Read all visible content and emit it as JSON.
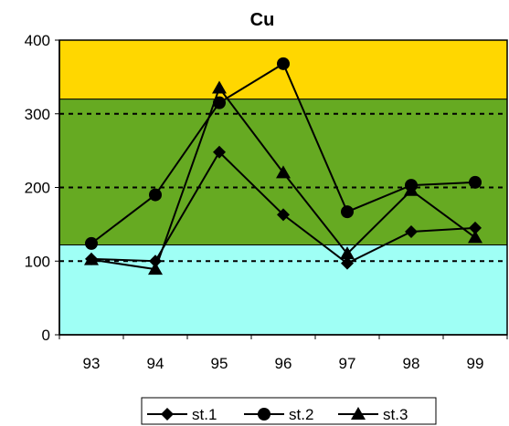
{
  "chart_data": {
    "type": "line",
    "title": "Cu",
    "xlabel": "",
    "ylabel": "",
    "categories": [
      "93",
      "94",
      "95",
      "96",
      "97",
      "98",
      "99"
    ],
    "ylim": [
      0,
      400
    ],
    "yticks": [
      "0",
      "100",
      "200",
      "300",
      "400"
    ],
    "bands": [
      {
        "from": 0,
        "to": 122,
        "color": "#9FFFF5"
      },
      {
        "from": 122,
        "to": 320,
        "color": "#66AA22"
      },
      {
        "from": 320,
        "to": 400,
        "color": "#FFD700"
      }
    ],
    "dashed_gridlines": [
      100,
      200,
      300
    ],
    "legend_position": "bottom",
    "series": [
      {
        "name": "st.1",
        "marker": "diamond",
        "values": [
          103,
          100,
          248,
          163,
          97,
          140,
          145
        ]
      },
      {
        "name": "st.2",
        "marker": "circle",
        "values": [
          124,
          190,
          315,
          368,
          167,
          203,
          207
        ]
      },
      {
        "name": "st.3",
        "marker": "triangle",
        "values": [
          102,
          89,
          335,
          220,
          110,
          196,
          132
        ]
      }
    ]
  }
}
